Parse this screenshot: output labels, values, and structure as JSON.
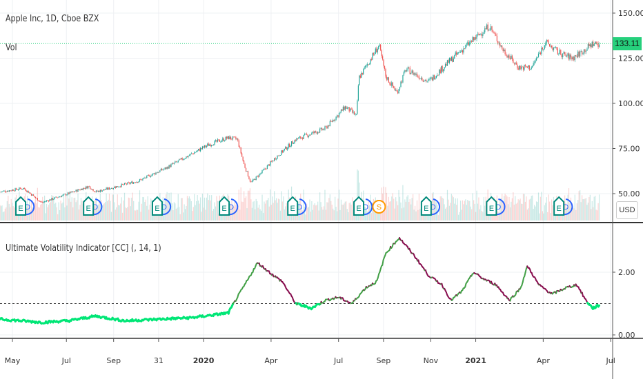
{
  "header": {
    "title": "Apple Inc, 1D, Cboe BZX",
    "volume_label": "Vol"
  },
  "indicator": {
    "title": "Ultimate Volatility Indicator [CC] (, 14, 1)"
  },
  "price_axis": {
    "currency": "USD",
    "last_price": "133.11",
    "ticks": [
      "150.00",
      "125.00",
      "100.00",
      "75.00",
      "50.00"
    ]
  },
  "indicator_axis": {
    "ticks": [
      "2.00",
      "0.00"
    ]
  },
  "time_axis": {
    "labels": [
      {
        "t": 1,
        "label": "May",
        "bold": false
      },
      {
        "t": 3.4,
        "label": "Jul",
        "bold": false
      },
      {
        "t": 5.5,
        "label": "Sep",
        "bold": false
      },
      {
        "t": 7.5,
        "label": "31",
        "bold": false
      },
      {
        "t": 9.5,
        "label": "2020",
        "bold": true
      },
      {
        "t": 12.5,
        "label": "Apr",
        "bold": false
      },
      {
        "t": 15.5,
        "label": "Jul",
        "bold": false
      },
      {
        "t": 17.5,
        "label": "Sep",
        "bold": false
      },
      {
        "t": 19.6,
        "label": "Nov",
        "bold": false
      },
      {
        "t": 21.6,
        "label": "2021",
        "bold": true
      },
      {
        "t": 24.6,
        "label": "Apr",
        "bold": false
      },
      {
        "t": 27.6,
        "label": "Jul",
        "bold": false
      }
    ]
  },
  "colors": {
    "up": "#26a69a",
    "down": "#ef5350",
    "low_vol": "#00e676",
    "rising": "#43a047",
    "falling": "#880e4f",
    "earnings": "#00897b",
    "dividend": "#2962ff",
    "split": "#ff9800"
  },
  "chart_data": [
    {
      "type": "candlestick",
      "title": "Apple Inc, 1D, Cboe BZX",
      "x_unit": "months since Apr 2019",
      "ylim": [
        30,
        155
      ],
      "points": [
        [
          0.45,
          51
        ],
        [
          1.5,
          53
        ],
        [
          2.3,
          45
        ],
        [
          4.4,
          54
        ],
        [
          4.7,
          51
        ],
        [
          6.6,
          57
        ],
        [
          7.8,
          64
        ],
        [
          9.7,
          77
        ],
        [
          10.6,
          81
        ],
        [
          11.0,
          80
        ],
        [
          11.3,
          66
        ],
        [
          11.6,
          56
        ],
        [
          12.1,
          62
        ],
        [
          12.7,
          70
        ],
        [
          13.6,
          80
        ],
        [
          14.9,
          86
        ],
        [
          15.8,
          98
        ],
        [
          16.3,
          93
        ],
        [
          16.4,
          114
        ],
        [
          17.3,
          132
        ],
        [
          17.6,
          115
        ],
        [
          18.1,
          106
        ],
        [
          18.5,
          119
        ],
        [
          19.5,
          112
        ],
        [
          20.4,
          123
        ],
        [
          21.3,
          133
        ],
        [
          22.2,
          143
        ],
        [
          22.8,
          130
        ],
        [
          23.5,
          120
        ],
        [
          24.1,
          120
        ],
        [
          24.7,
          134
        ],
        [
          25.3,
          128
        ],
        [
          25.9,
          125
        ],
        [
          26.8,
          133
        ],
        [
          27.1,
          133.11
        ]
      ],
      "events": [
        {
          "t": 1.37,
          "type": "E"
        },
        {
          "t": 4.38,
          "type": "E"
        },
        {
          "t": 7.44,
          "type": "E"
        },
        {
          "t": 10.42,
          "type": "E"
        },
        {
          "t": 13.46,
          "type": "E"
        },
        {
          "t": 16.4,
          "type": "E"
        },
        {
          "t": 17.3,
          "type": "S"
        },
        {
          "t": 19.4,
          "type": "E"
        },
        {
          "t": 22.3,
          "type": "E"
        },
        {
          "t": 25.3,
          "type": "E"
        }
      ]
    },
    {
      "type": "line",
      "title": "Ultimate Volatility Indicator [CC] (, 14, 1)",
      "ylim": [
        0,
        3.3
      ],
      "threshold": 1,
      "points": [
        [
          0.45,
          0.5
        ],
        [
          1.4,
          0.45
        ],
        [
          2.3,
          0.4
        ],
        [
          3.5,
          0.45
        ],
        [
          4.7,
          0.6
        ],
        [
          6.0,
          0.45
        ],
        [
          7.5,
          0.5
        ],
        [
          9.0,
          0.55
        ],
        [
          10.6,
          0.7
        ],
        [
          11.0,
          1.2
        ],
        [
          11.5,
          1.8
        ],
        [
          11.9,
          2.3
        ],
        [
          12.6,
          1.9
        ],
        [
          13.0,
          1.7
        ],
        [
          13.6,
          1.0
        ],
        [
          14.3,
          0.85
        ],
        [
          14.9,
          1.1
        ],
        [
          15.5,
          1.2
        ],
        [
          16.1,
          1.0
        ],
        [
          16.7,
          1.5
        ],
        [
          17.2,
          1.7
        ],
        [
          17.6,
          2.6
        ],
        [
          18.2,
          3.1
        ],
        [
          18.9,
          2.5
        ],
        [
          19.5,
          1.9
        ],
        [
          20.1,
          1.6
        ],
        [
          20.5,
          1.1
        ],
        [
          21.0,
          1.4
        ],
        [
          21.5,
          2.0
        ],
        [
          21.9,
          1.8
        ],
        [
          22.5,
          1.6
        ],
        [
          23.1,
          1.1
        ],
        [
          23.6,
          1.5
        ],
        [
          23.9,
          2.2
        ],
        [
          24.4,
          1.6
        ],
        [
          25.0,
          1.3
        ],
        [
          25.6,
          1.5
        ],
        [
          26.1,
          1.6
        ],
        [
          26.5,
          1.1
        ],
        [
          26.8,
          0.85
        ],
        [
          27.1,
          0.95
        ]
      ]
    }
  ]
}
